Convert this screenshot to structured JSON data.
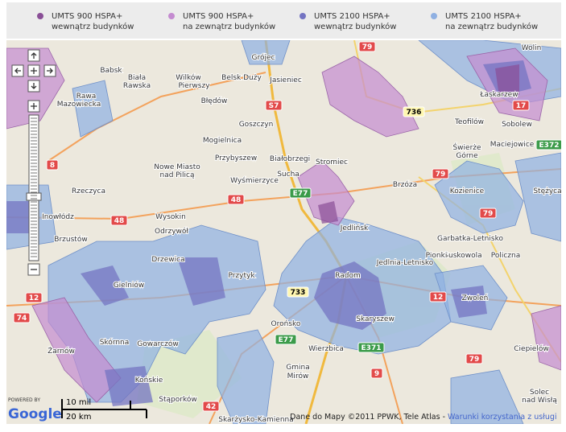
{
  "legend": [
    {
      "line1": "UMTS 900 HSPA+",
      "line2": "wewnątrz budynków",
      "color": "#8a4f97"
    },
    {
      "line1": "UMTS 900 HSPA+",
      "line2": "na zewnątrz budynków",
      "color": "#c48bd0"
    },
    {
      "line1": "UMTS 2100 HSPA+",
      "line2": "wewnątrz budynków",
      "color": "#7474c2"
    },
    {
      "line1": "UMTS 2100 HSPA+",
      "line2": "na zewnątrz budynków",
      "color": "#8fb0e2"
    }
  ],
  "places": [
    "Babsk",
    "Biała",
    "Rawska",
    "Wilków",
    "Pierwszy",
    "Belsk Duży",
    "Jasieniec",
    "Grójec",
    "Rawa",
    "Mazowiecka",
    "Błędów",
    "Goszczyn",
    "Mogielnica",
    "Przybyszew",
    "Białobrzegi",
    "Stromiec",
    "Nowe Miasto",
    "nad Pilicą",
    "Sucha",
    "Wyśmierzyce",
    "Rzeczyca",
    "Inowłódz",
    "Wysokin",
    "Odrzywół",
    "Jedlińsk",
    "Brzustów",
    "Radom",
    "Wierzbica",
    "Gmina",
    "Mirów",
    "Stąporków",
    "Końskie",
    "Gowarczów",
    "Żarnów",
    "Skarżysko-Kamienna",
    "Łaskarzew",
    "Teofilów",
    "Sobolew",
    "Maciejowice",
    "Świerże",
    "Górne",
    "Kozienice",
    "Brzóza",
    "Garbatka-Letnisko",
    "Policzna",
    "Suskowola",
    "Zwoleń",
    "Jedlnia-Letnisko",
    "Skaryszew",
    "Solec",
    "nad Wisłą",
    "Wolin",
    "Przytyk",
    "Orońsko",
    "Gielniów",
    "Drzewica",
    "Skórnna",
    "Stężyca",
    "Pionki",
    "Ciepielów"
  ],
  "roads": [
    {
      "label": "79",
      "color": "#e24a4a"
    },
    {
      "label": "S7",
      "color": "#e24a4a"
    },
    {
      "label": "736",
      "color": "#fff7b0"
    },
    {
      "label": "17",
      "color": "#e24a4a"
    },
    {
      "label": "E372",
      "color": "#3b9b4a"
    },
    {
      "label": "8",
      "color": "#e24a4a"
    },
    {
      "label": "79",
      "color": "#e24a4a"
    },
    {
      "label": "48",
      "color": "#e24a4a"
    },
    {
      "label": "48",
      "color": "#e24a4a"
    },
    {
      "label": "79",
      "color": "#e24a4a"
    },
    {
      "label": "12",
      "color": "#e24a4a"
    },
    {
      "label": "12",
      "color": "#e24a4a"
    },
    {
      "label": "74",
      "color": "#e24a4a"
    },
    {
      "label": "E77",
      "color": "#3b9b4a"
    },
    {
      "label": "E371",
      "color": "#3b9b4a"
    },
    {
      "label": "79",
      "color": "#e24a4a"
    },
    {
      "label": "9",
      "color": "#e24a4a"
    },
    {
      "label": "42",
      "color": "#e24a4a"
    },
    {
      "label": "E77",
      "color": "#3b9b4a"
    },
    {
      "label": "733",
      "color": "#fff7b0"
    }
  ],
  "scale": {
    "miles": "10 mil",
    "km": "20 km"
  },
  "attribution": {
    "data": "Dane do Mapy ©2011 PPWK, Tele Atlas -",
    "terms": "Warunki korzystania z usługi"
  },
  "logo": {
    "powered": "POWERED BY",
    "google": "Google"
  }
}
